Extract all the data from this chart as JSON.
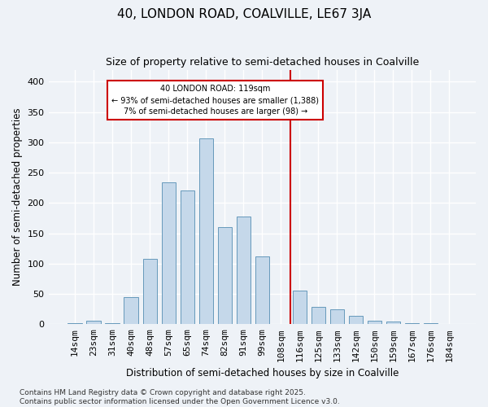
{
  "title": "40, LONDON ROAD, COALVILLE, LE67 3JA",
  "subtitle": "Size of property relative to semi-detached houses in Coalville",
  "xlabel": "Distribution of semi-detached houses by size in Coalville",
  "ylabel": "Number of semi-detached properties",
  "footer": "Contains HM Land Registry data © Crown copyright and database right 2025.\nContains public sector information licensed under the Open Government Licence v3.0.",
  "bin_labels": [
    "14sqm",
    "23sqm",
    "31sqm",
    "40sqm",
    "48sqm",
    "57sqm",
    "65sqm",
    "74sqm",
    "82sqm",
    "91sqm",
    "99sqm",
    "108sqm",
    "116sqm",
    "125sqm",
    "133sqm",
    "142sqm",
    "150sqm",
    "159sqm",
    "167sqm",
    "176sqm",
    "184sqm"
  ],
  "bar_values": [
    2,
    6,
    2,
    45,
    108,
    234,
    220,
    307,
    160,
    178,
    112,
    0,
    55,
    29,
    24,
    14,
    6,
    5,
    2,
    2,
    1
  ],
  "bar_color": "#c5d8ea",
  "bar_edge_color": "#6699bb",
  "vline_x": 11.5,
  "vline_color": "#cc0000",
  "annotation_title": "40 LONDON ROAD: 119sqm",
  "annotation_line1": "← 93% of semi-detached houses are smaller (1,388)",
  "annotation_line2": "7% of semi-detached houses are larger (98) →",
  "annotation_box_color": "#cc0000",
  "ylim": [
    0,
    420
  ],
  "yticks": [
    0,
    50,
    100,
    150,
    200,
    250,
    300,
    350,
    400
  ],
  "background_color": "#eef2f7",
  "grid_color": "#ffffff",
  "title_fontsize": 11,
  "subtitle_fontsize": 9,
  "ylabel_fontsize": 8.5,
  "xlabel_fontsize": 8.5,
  "tick_fontsize": 8,
  "footer_fontsize": 6.5
}
